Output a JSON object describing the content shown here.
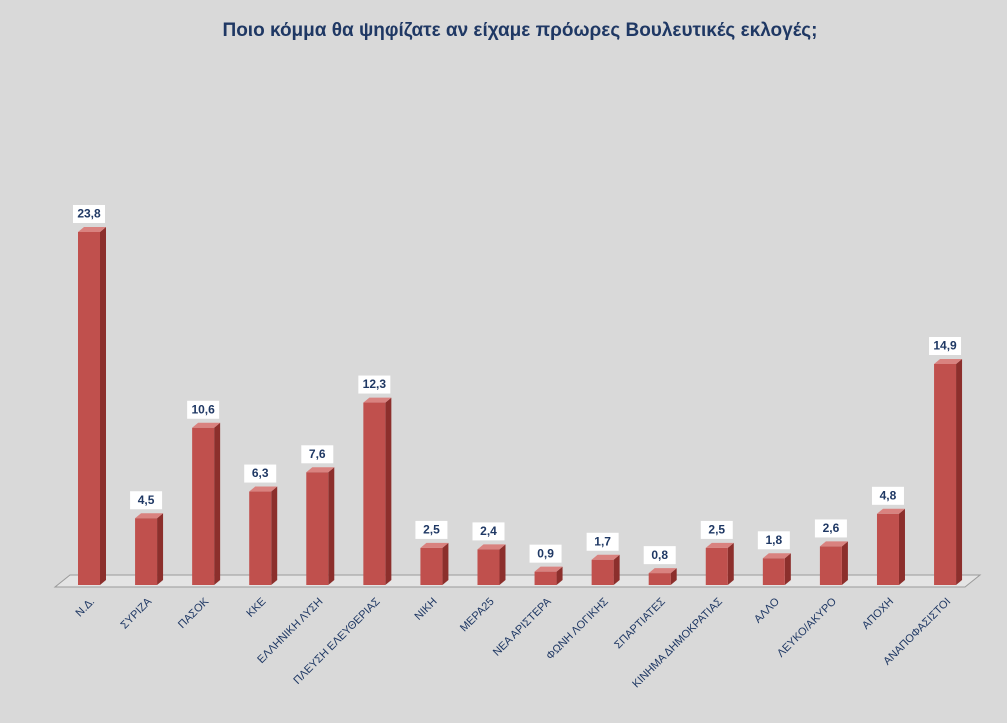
{
  "chart_data": {
    "type": "bar",
    "title": "Ποιο κόμμα θα ψηφίζατε αν είχαμε πρόωρες Βουλευτικές εκλογές;",
    "categories": [
      "Ν.Δ.",
      "ΣΥΡΙΖΑ",
      "ΠΑΣΟΚ",
      "ΚΚΕ",
      "ΕΛΛΗΝΙΚΗ ΛΥΣΗ",
      "ΠΛΕΥΣΗ ΕΛΕΥΘΕΡΙΑΣ",
      "ΝΙΚΗ",
      "ΜΕΡΑ25",
      "ΝΕΑ ΑΡΙΣΤΕΡΑ",
      "ΦΩΝΗ ΛΟΓΙΚΗΣ",
      "ΣΠΑΡΤΙΑΤΕΣ",
      "ΚΙΝΗΜΑ ΔΗΜΟΚΡΑΤΙΑΣ",
      "ΑΛΛΟ",
      "ΛΕΥΚΟ/ΑΚΥΡΟ",
      "ΑΠΟΧΗ",
      "ΑΝΑΠΟΦΑΣΙΣΤΟΙ"
    ],
    "values": [
      23.8,
      4.5,
      10.6,
      6.3,
      7.6,
      12.3,
      2.5,
      2.4,
      0.9,
      1.7,
      0.8,
      2.5,
      1.8,
      2.6,
      4.8,
      14.9
    ],
    "value_labels": [
      "23,8",
      "4,5",
      "10,6",
      "6,3",
      "7,6",
      "12,3",
      "2,5",
      "2,4",
      "0,9",
      "1,7",
      "0,8",
      "2,5",
      "1,8",
      "2,6",
      "4,8",
      "14,9"
    ],
    "color": "#c0504d"
  }
}
